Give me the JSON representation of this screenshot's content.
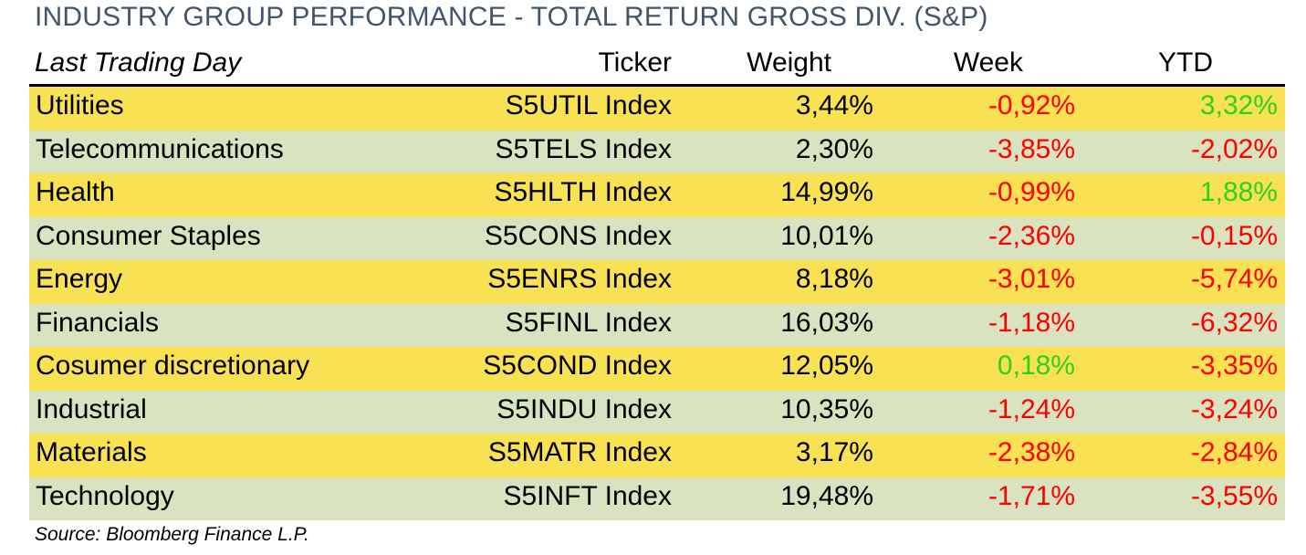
{
  "title": "INDUSTRY GROUP PERFORMANCE - TOTAL RETURN GROSS DIV. (S&P)",
  "header": {
    "label": "Last Trading Day",
    "ticker": "Ticker",
    "weight": "Weight",
    "week": "Week",
    "ytd": "YTD"
  },
  "colors": {
    "row_odd": "#F8E153",
    "row_even": "#D9E3C0",
    "negative": "#FF0000",
    "positive": "#2DD01E",
    "title": "#44546A"
  },
  "rows": [
    {
      "name": "Utilities",
      "ticker": "S5UTIL Index",
      "weight": "3,44%",
      "week": "-0,92%",
      "ytd": "3,32%"
    },
    {
      "name": "Telecommunications",
      "ticker": "S5TELS Index",
      "weight": "2,30%",
      "week": "-3,85%",
      "ytd": "-2,02%"
    },
    {
      "name": "Health",
      "ticker": "S5HLTH Index",
      "weight": "14,99%",
      "week": "-0,99%",
      "ytd": "1,88%"
    },
    {
      "name": "Consumer Staples",
      "ticker": "S5CONS Index",
      "weight": "10,01%",
      "week": "-2,36%",
      "ytd": "-0,15%"
    },
    {
      "name": "Energy",
      "ticker": "S5ENRS Index",
      "weight": "8,18%",
      "week": "-3,01%",
      "ytd": "-5,74%"
    },
    {
      "name": "Financials",
      "ticker": "S5FINL Index",
      "weight": "16,03%",
      "week": "-1,18%",
      "ytd": "-6,32%"
    },
    {
      "name": "Cosumer discretionary",
      "ticker": "S5COND Index",
      "weight": "12,05%",
      "week": "0,18%",
      "ytd": "-3,35%"
    },
    {
      "name": "Industrial",
      "ticker": "S5INDU Index",
      "weight": "10,35%",
      "week": "-1,24%",
      "ytd": "-3,24%"
    },
    {
      "name": "Materials",
      "ticker": "S5MATR Index",
      "weight": "3,17%",
      "week": "-2,38%",
      "ytd": "-2,84%"
    },
    {
      "name": "Technology",
      "ticker": "S5INFT Index",
      "weight": "19,48%",
      "week": "-1,71%",
      "ytd": "-3,55%"
    }
  ],
  "source": "Source: Bloomberg Finance L.P."
}
